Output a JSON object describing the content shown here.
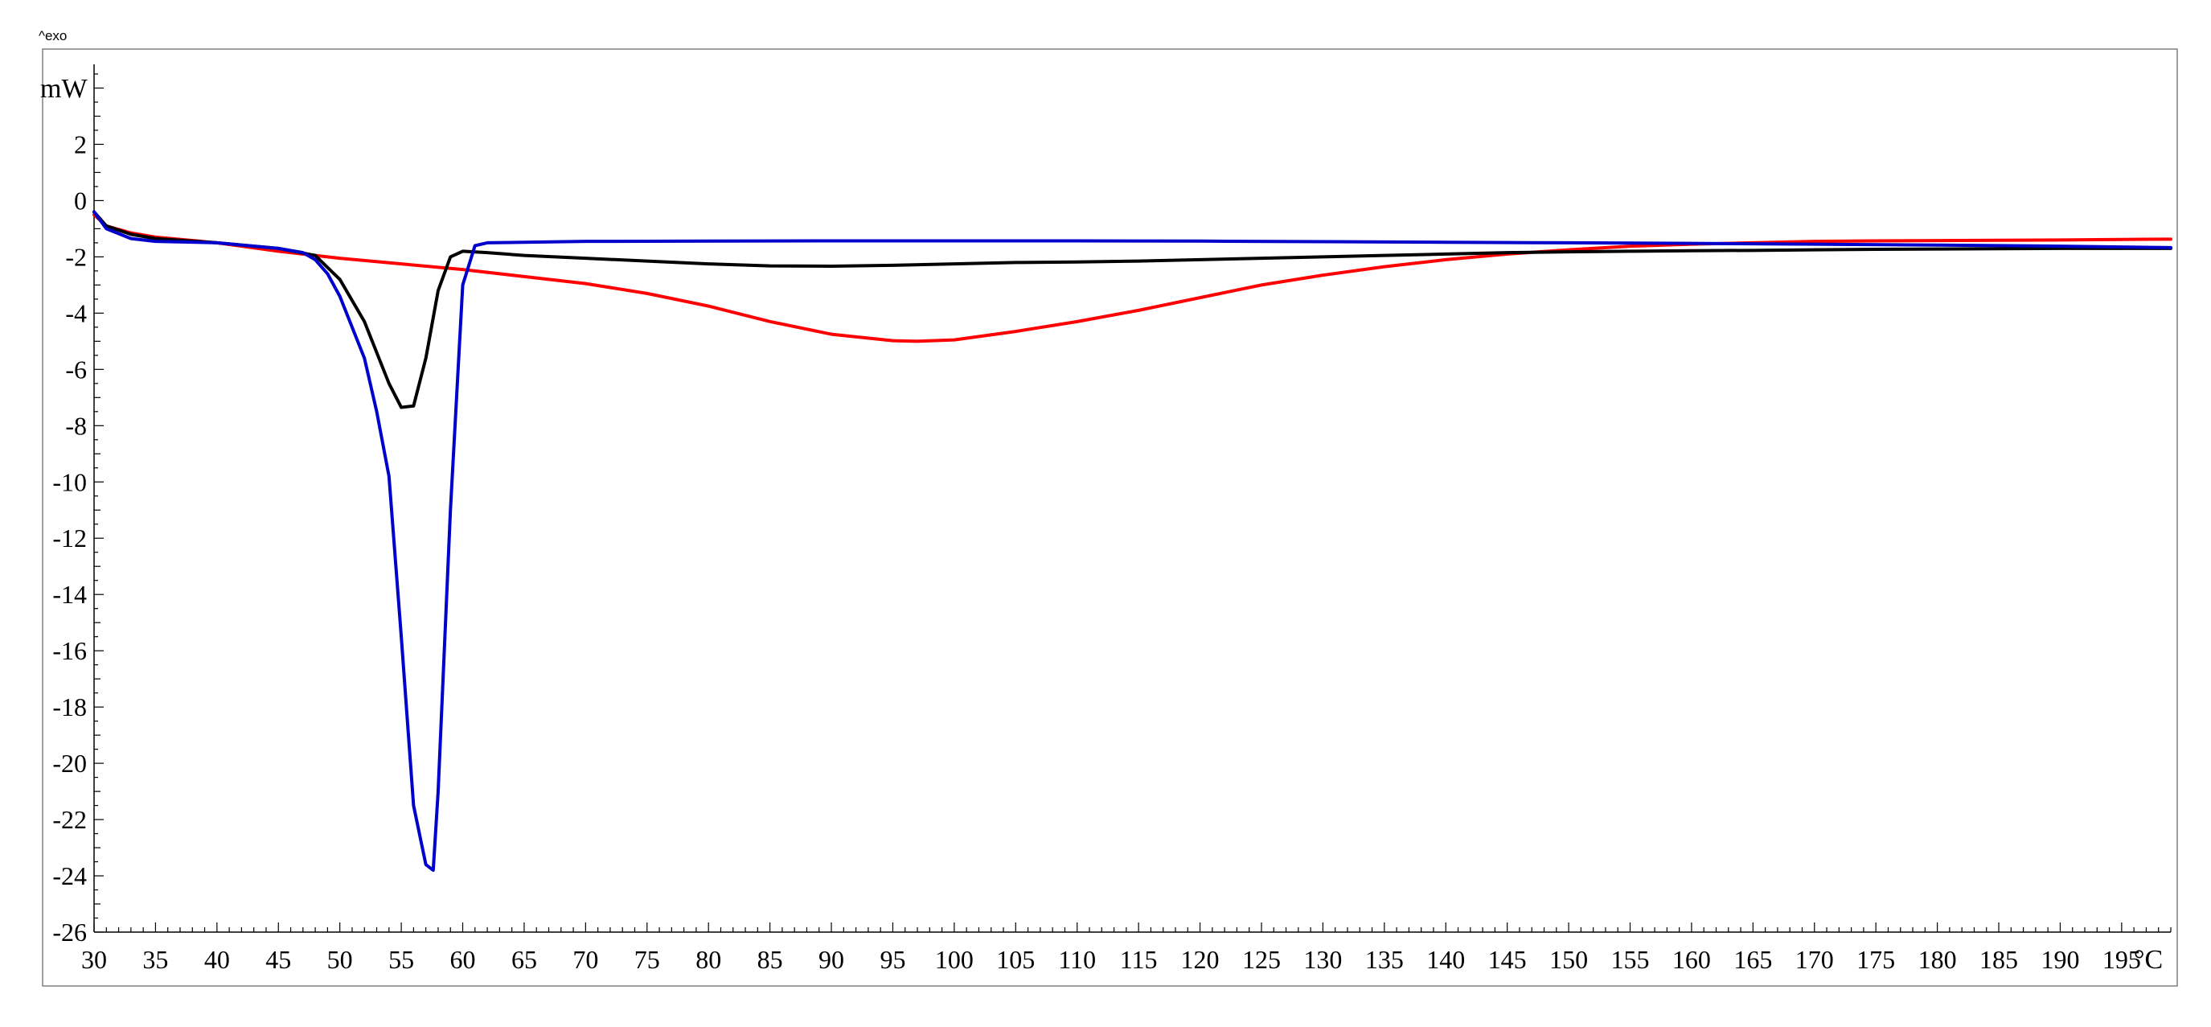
{
  "chart_data": {
    "type": "line",
    "header_note": "^exo",
    "y_unit": "mW",
    "x_unit": "°C",
    "xlim": [
      30,
      199
    ],
    "ylim": [
      -26,
      4.7
    ],
    "x_ticks": [
      30,
      35,
      40,
      45,
      50,
      55,
      60,
      65,
      70,
      75,
      80,
      85,
      90,
      95,
      100,
      105,
      110,
      115,
      120,
      125,
      130,
      135,
      140,
      145,
      150,
      155,
      160,
      165,
      170,
      175,
      180,
      185,
      190,
      195
    ],
    "x_tick_labels": [
      "30",
      "35",
      "40",
      "45",
      "50",
      "55",
      "60",
      "65",
      "70",
      "75",
      "80",
      "85",
      "90",
      "95",
      "100",
      "105",
      "110",
      "115",
      "120",
      "125",
      "130",
      "135",
      "140",
      "145",
      "150",
      "155",
      "160",
      "165",
      "170",
      "175",
      "180",
      "185",
      "190",
      "195"
    ],
    "y_ticks": [
      2,
      0,
      -2,
      -4,
      -6,
      -8,
      -10,
      -12,
      -14,
      -16,
      -18,
      -20,
      -22,
      -24,
      -26
    ],
    "y_tick_labels": [
      "2",
      "0",
      "-2",
      "-4",
      "-6",
      "-8",
      "-10",
      "-12",
      "-14",
      "-16",
      "-18",
      "-20",
      "-22",
      "-24",
      "-26"
    ],
    "grid": false,
    "legend": "none",
    "series": [
      {
        "color": "#ff0000",
        "x": [
          30,
          31,
          33,
          35,
          40,
          45,
          50,
          55,
          60,
          65,
          70,
          75,
          80,
          85,
          90,
          95,
          97,
          100,
          105,
          110,
          115,
          120,
          125,
          130,
          135,
          140,
          145,
          150,
          155,
          160,
          165,
          170,
          175,
          180,
          185,
          190,
          195,
          199
        ],
        "y": [
          -0.5,
          -0.9,
          -1.15,
          -1.3,
          -1.5,
          -1.8,
          -2.05,
          -2.25,
          -2.45,
          -2.7,
          -2.95,
          -3.3,
          -3.75,
          -4.3,
          -4.75,
          -4.98,
          -5.0,
          -4.95,
          -4.65,
          -4.3,
          -3.9,
          -3.45,
          -3.0,
          -2.65,
          -2.35,
          -2.1,
          -1.9,
          -1.75,
          -1.62,
          -1.55,
          -1.5,
          -1.45,
          -1.43,
          -1.42,
          -1.41,
          -1.4,
          -1.38,
          -1.37
        ]
      },
      {
        "color": "#000000",
        "x": [
          30,
          31,
          33,
          35,
          40,
          45,
          48,
          50,
          52,
          54,
          55,
          56,
          57,
          58,
          59,
          60,
          62,
          65,
          70,
          75,
          80,
          85,
          90,
          95,
          100,
          105,
          110,
          115,
          120,
          125,
          130,
          135,
          140,
          145,
          150,
          155,
          160,
          165,
          170,
          175,
          180,
          185,
          190,
          195,
          199
        ],
        "y": [
          -0.4,
          -0.9,
          -1.2,
          -1.35,
          -1.5,
          -1.7,
          -1.95,
          -2.8,
          -4.3,
          -6.5,
          -7.35,
          -7.3,
          -5.6,
          -3.2,
          -2.0,
          -1.8,
          -1.85,
          -1.95,
          -2.05,
          -2.15,
          -2.25,
          -2.32,
          -2.33,
          -2.3,
          -2.25,
          -2.2,
          -2.18,
          -2.15,
          -2.1,
          -2.05,
          -2.0,
          -1.95,
          -1.9,
          -1.85,
          -1.82,
          -1.8,
          -1.78,
          -1.77,
          -1.75,
          -1.73,
          -1.72,
          -1.71,
          -1.7,
          -1.7,
          -1.7
        ]
      },
      {
        "color": "#0000cc",
        "x": [
          30,
          31,
          33,
          35,
          40,
          45,
          47,
          48,
          49,
          50,
          52,
          53,
          54,
          55,
          56,
          57,
          57.6,
          58,
          59,
          60,
          61,
          62,
          65,
          70,
          80,
          90,
          100,
          110,
          120,
          130,
          140,
          150,
          160,
          170,
          180,
          190,
          195,
          199
        ],
        "y": [
          -0.4,
          -1.0,
          -1.35,
          -1.45,
          -1.5,
          -1.7,
          -1.85,
          -2.1,
          -2.6,
          -3.4,
          -5.6,
          -7.5,
          -9.8,
          -15.5,
          -21.5,
          -23.6,
          -23.8,
          -21.0,
          -11.0,
          -3.0,
          -1.6,
          -1.5,
          -1.48,
          -1.45,
          -1.44,
          -1.43,
          -1.43,
          -1.43,
          -1.44,
          -1.46,
          -1.48,
          -1.5,
          -1.52,
          -1.55,
          -1.58,
          -1.62,
          -1.65,
          -1.67
        ]
      }
    ]
  }
}
